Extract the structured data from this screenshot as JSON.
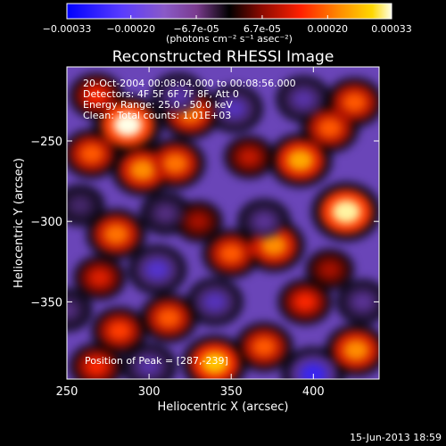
{
  "chart_data": {
    "type": "heatmap",
    "title": "Reconstructed RHESSI Image",
    "xlabel": "Heliocentric X (arcsec)",
    "ylabel": "Heliocentric Y (arcsec)",
    "xlim": [
      250,
      440
    ],
    "ylim": [
      -398,
      -204
    ],
    "x_ticks": [
      250,
      300,
      350,
      400
    ],
    "y_ticks": [
      -250,
      -300,
      -350
    ],
    "colorbar": {
      "unit_label": "(photons cm⁻² s⁻¹ asec⁻²)",
      "range": [
        -0.00033,
        0.00033
      ],
      "tick_labels": [
        "-0.00033",
        "-0.00020",
        "-6.7e-05",
        "6.7e-05",
        "0.00020",
        "0.00033"
      ],
      "tick_values": [
        -0.00033,
        -0.0002,
        -6.7e-05,
        6.7e-05,
        0.0002,
        0.00033
      ]
    },
    "annotations": {
      "time": "20-Oct-2004 00:08:04.000 to 00:08:56.000",
      "detectors": "Detectors: 4F 5F 6F 7F 8F, Att 0",
      "energy": "Energy Range: 25.0 - 50.0 keV",
      "clean": "Clean: Total counts: 1.01E+03",
      "peak": "Position of Peak = [287,-239]"
    },
    "peak_position": [
      287,
      -239
    ],
    "sources": [
      {
        "x": 287,
        "y": -240,
        "value": 0.00033
      },
      {
        "x": 268,
        "y": -222,
        "value": 0.00016
      },
      {
        "x": 265,
        "y": -258,
        "value": 0.0002
      },
      {
        "x": 296,
        "y": -268,
        "value": 0.00024
      },
      {
        "x": 316,
        "y": -264,
        "value": 0.00022
      },
      {
        "x": 325,
        "y": -233,
        "value": 0.00022
      },
      {
        "x": 361,
        "y": -260,
        "value": 0.00012
      },
      {
        "x": 392,
        "y": -262,
        "value": 0.00026
      },
      {
        "x": 410,
        "y": -242,
        "value": 0.0002
      },
      {
        "x": 425,
        "y": -226,
        "value": 0.0002
      },
      {
        "x": 420,
        "y": -294,
        "value": 0.00032
      },
      {
        "x": 410,
        "y": -330,
        "value": 0.0001
      },
      {
        "x": 395,
        "y": -350,
        "value": 0.00016
      },
      {
        "x": 280,
        "y": -308,
        "value": 0.00022
      },
      {
        "x": 270,
        "y": -335,
        "value": 0.00014
      },
      {
        "x": 330,
        "y": -300,
        "value": 0.0001
      },
      {
        "x": 350,
        "y": -320,
        "value": 0.0002
      },
      {
        "x": 376,
        "y": -315,
        "value": 0.00024
      },
      {
        "x": 312,
        "y": -360,
        "value": 0.0002
      },
      {
        "x": 282,
        "y": -368,
        "value": 0.00018
      },
      {
        "x": 268,
        "y": -390,
        "value": 0.00016
      },
      {
        "x": 340,
        "y": -388,
        "value": 0.00028
      },
      {
        "x": 370,
        "y": -378,
        "value": 0.0002
      },
      {
        "x": 426,
        "y": -380,
        "value": 0.00024
      },
      {
        "x": 318,
        "y": -222,
        "value": -0.00016
      },
      {
        "x": 352,
        "y": -230,
        "value": -0.00018
      },
      {
        "x": 394,
        "y": -224,
        "value": -0.00016
      },
      {
        "x": 370,
        "y": -300,
        "value": -0.00014
      },
      {
        "x": 310,
        "y": -295,
        "value": -0.00012
      },
      {
        "x": 258,
        "y": -290,
        "value": -0.0001
      },
      {
        "x": 305,
        "y": -330,
        "value": -0.0002
      },
      {
        "x": 340,
        "y": -350,
        "value": -0.00018
      },
      {
        "x": 300,
        "y": -390,
        "value": -0.00016
      },
      {
        "x": 400,
        "y": -395,
        "value": -0.00026
      },
      {
        "x": 430,
        "y": -350,
        "value": -0.00014
      },
      {
        "x": 250,
        "y": -355,
        "value": -0.00012
      }
    ]
  },
  "footer": {
    "date": "15-Jun-2013 18:59"
  }
}
